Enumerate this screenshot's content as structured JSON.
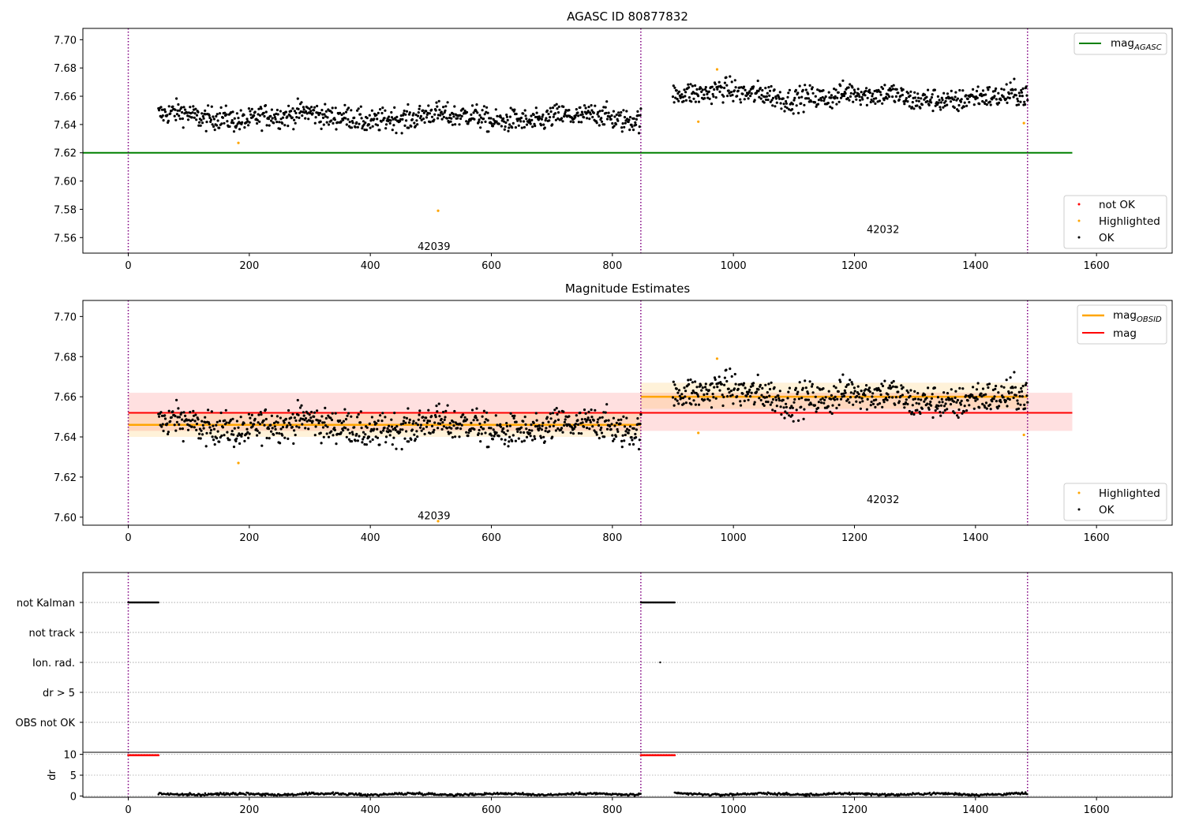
{
  "figure_title": "AGASC ID 80877832",
  "chart_data": [
    {
      "type": "scatter",
      "title": "AGASC ID 80877832",
      "xlim": [
        -75,
        1725
      ],
      "ylim": [
        7.549,
        7.708
      ],
      "xticks": [
        0,
        200,
        400,
        600,
        800,
        1000,
        1200,
        1400,
        1600
      ],
      "xtick_labels": [
        "0",
        "200",
        "400",
        "600",
        "800",
        "1000",
        "1200",
        "1400",
        "1600"
      ],
      "yticks": [
        7.56,
        7.58,
        7.6,
        7.62,
        7.64,
        7.66,
        7.68,
        7.7
      ],
      "ytick_labels": [
        "7.56",
        "7.58",
        "7.60",
        "7.62",
        "7.64",
        "7.66",
        "7.68",
        "7.70"
      ],
      "obsid_boundaries": [
        0,
        847,
        1486
      ],
      "lines": [
        {
          "name": "mag_AGASC",
          "label_main": "mag",
          "label_sub": "AGASC",
          "y": 7.62,
          "x_range": [
            -75,
            1560
          ],
          "color": "#008000"
        }
      ],
      "segments": [
        {
          "x_range": [
            50,
            847
          ],
          "mean": 7.645,
          "spread": 0.0055,
          "drift": -0.001,
          "n": 780
        },
        {
          "x_range": [
            900,
            1486
          ],
          "mean": 7.66,
          "spread": 0.0055,
          "drift": -0.002,
          "n": 560
        }
      ],
      "highlighted_points": [
        [
          182,
          7.627
        ],
        [
          512,
          7.579
        ],
        [
          942,
          7.642
        ],
        [
          973,
          7.679
        ],
        [
          1480,
          7.641
        ]
      ],
      "annotations": [
        {
          "text": "42039",
          "x": 423,
          "y": 7.554
        },
        {
          "text": "42032",
          "x": 1165,
          "y": 7.566
        }
      ],
      "legend_upper": [
        "mag_AGASC"
      ],
      "legend_lower": [
        {
          "label": "not OK",
          "color": "#ff0000"
        },
        {
          "label": "Highlighted",
          "color": "#ffa500"
        },
        {
          "label": "OK",
          "color": "#000000"
        }
      ]
    },
    {
      "type": "scatter",
      "title": "Magnitude Estimates",
      "xlim": [
        -75,
        1725
      ],
      "ylim": [
        7.596,
        7.708
      ],
      "xticks": [
        0,
        200,
        400,
        600,
        800,
        1000,
        1200,
        1400,
        1600
      ],
      "xtick_labels": [
        "0",
        "200",
        "400",
        "600",
        "800",
        "1000",
        "1200",
        "1400",
        "1600"
      ],
      "yticks": [
        7.6,
        7.62,
        7.64,
        7.66,
        7.68,
        7.7
      ],
      "ytick_labels": [
        "7.60",
        "7.62",
        "7.64",
        "7.66",
        "7.68",
        "7.70"
      ],
      "obsid_boundaries": [
        0,
        847,
        1486
      ],
      "mag": {
        "label": "mag",
        "y": 7.652,
        "band": [
          7.643,
          7.662
        ],
        "x_range": [
          0,
          1560
        ],
        "color": "#ff0000"
      },
      "mag_obsid": [
        {
          "label": "mag_OBSID",
          "x_range": [
            0,
            847
          ],
          "y": 7.646,
          "band": [
            7.64,
            7.652
          ]
        },
        {
          "label": "mag_OBSID",
          "x_range": [
            847,
            1486
          ],
          "y": 7.66,
          "band": [
            7.654,
            7.667
          ]
        }
      ],
      "segments": [
        {
          "x_range": [
            50,
            847
          ],
          "mean": 7.645,
          "spread": 0.0055,
          "drift": -0.001,
          "n": 780
        },
        {
          "x_range": [
            900,
            1486
          ],
          "mean": 7.66,
          "spread": 0.0055,
          "drift": -0.002,
          "n": 560
        }
      ],
      "highlighted_points": [
        [
          182,
          7.627
        ],
        [
          512,
          7.598
        ],
        [
          942,
          7.642
        ],
        [
          973,
          7.679
        ],
        [
          1480,
          7.641
        ]
      ],
      "annotations": [
        {
          "text": "42039",
          "x": 423,
          "y": 7.601
        },
        {
          "text": "42032",
          "x": 1165,
          "y": 7.609
        }
      ],
      "legend_upper": [
        {
          "label_main": "mag",
          "label_sub": "OBSID",
          "color": "#ffa500"
        },
        {
          "label_main": "mag",
          "label_sub": "",
          "color": "#ff0000"
        }
      ],
      "legend_lower": [
        {
          "label": "Highlighted",
          "color": "#ffa500"
        },
        {
          "label": "OK",
          "color": "#000000"
        }
      ]
    },
    {
      "type": "scatter",
      "title": "",
      "xlim": [
        -75,
        1725
      ],
      "flag_rows": [
        "not Kalman",
        "not track",
        "Ion. rad.",
        "dr > 5",
        "OBS not OK"
      ],
      "flag_points": {
        "not Kalman": [
          [
            0,
            50
          ],
          [
            847,
            903
          ]
        ],
        "not track": [],
        "Ion. rad.": [
          [
            879,
            879
          ]
        ],
        "dr > 5": [],
        "OBS not OK": []
      },
      "obsid_boundaries": [
        0,
        847,
        1486
      ]
    },
    {
      "type": "scatter",
      "title": "",
      "ylabel": "dr",
      "xlim": [
        -75,
        1725
      ],
      "ylim": [
        -0.3,
        10.5
      ],
      "xticks": [
        0,
        200,
        400,
        600,
        800,
        1000,
        1200,
        1400,
        1600
      ],
      "xtick_labels": [
        "0",
        "200",
        "400",
        "600",
        "800",
        "1000",
        "1200",
        "1400",
        "1600"
      ],
      "yticks": [
        0,
        5,
        10
      ],
      "ytick_labels": [
        "0",
        "5",
        "10"
      ],
      "clipped_value": 9.8,
      "clipped_ranges": [
        [
          0,
          50
        ],
        [
          847,
          903
        ]
      ],
      "segments": [
        {
          "x_range": [
            50,
            847
          ],
          "mean": 0.45,
          "spread": 0.25
        },
        {
          "x_range": [
            903,
            1486
          ],
          "mean": 0.45,
          "spread": 0.25
        }
      ],
      "obsid_boundaries": [
        0,
        847,
        1486
      ]
    }
  ]
}
